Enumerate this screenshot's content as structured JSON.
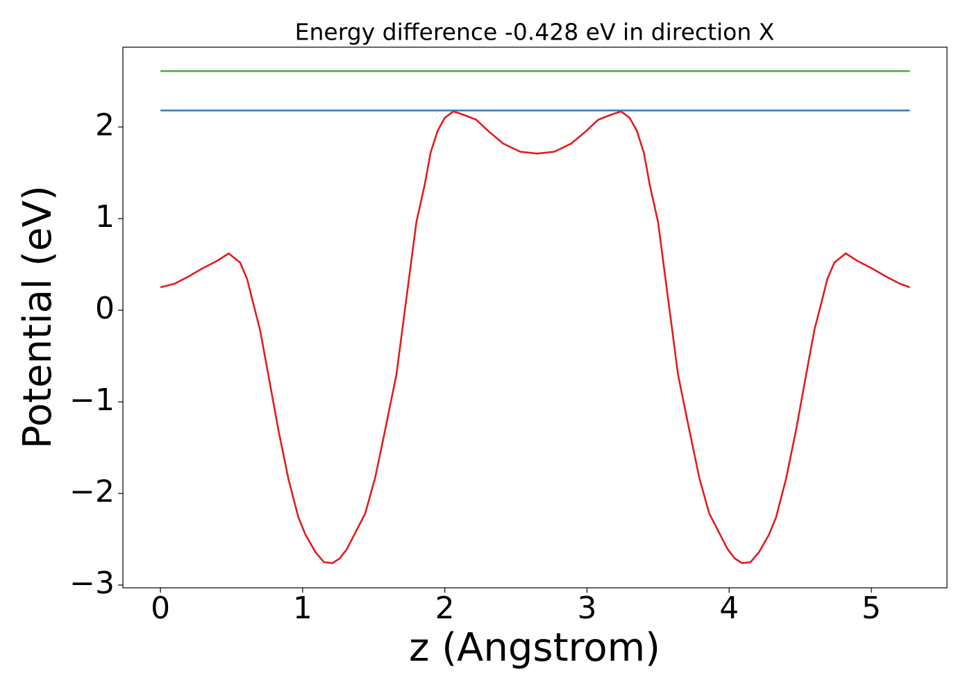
{
  "chart_data": {
    "type": "line",
    "title": "Energy difference -0.428 eV in direction X",
    "x_label": "z (Angstrom)",
    "y_label": "Potential (eV)",
    "xlim": [
      -0.264,
      5.532
    ],
    "ylim": [
      -3.03,
      2.871
    ],
    "xticks": [
      0,
      1,
      2,
      3,
      4,
      5
    ],
    "yticks": [
      {
        "value": -3,
        "label": "−3"
      },
      {
        "value": -2,
        "label": "−2"
      },
      {
        "value": -1,
        "label": "−1"
      },
      0,
      1,
      2
    ],
    "grid": false,
    "series": [
      {
        "color": "#e41a1c",
        "x": [
          0,
          0.1,
          0.2,
          0.3,
          0.4,
          0.48,
          0.56,
          0.61,
          0.65,
          0.7,
          0.75,
          0.83,
          0.9,
          0.97,
          1.02,
          1.09,
          1.15,
          1.21,
          1.26,
          1.31,
          1.37,
          1.44,
          1.51,
          1.58,
          1.66,
          1.73,
          1.8,
          1.86,
          1.9,
          1.95,
          2.0,
          2.06,
          2.12,
          2.22,
          2.31,
          2.41,
          2.53,
          2.65,
          2.77,
          2.89,
          2.99,
          3.08,
          3.18,
          3.24,
          3.3,
          3.35,
          3.4,
          3.44,
          3.5,
          3.57,
          3.64,
          3.72,
          3.79,
          3.86,
          3.93,
          3.99,
          4.04,
          4.09,
          4.15,
          4.21,
          4.28,
          4.33,
          4.4,
          4.47,
          4.55,
          4.6,
          4.65,
          4.69,
          4.74,
          4.82,
          4.9,
          5.0,
          5.1,
          5.2,
          5.27
        ],
        "values": [
          0.25,
          0.29,
          0.37,
          0.46,
          0.54,
          0.62,
          0.52,
          0.34,
          0.09,
          -0.21,
          -0.63,
          -1.31,
          -1.84,
          -2.26,
          -2.45,
          -2.64,
          -2.75,
          -2.76,
          -2.71,
          -2.61,
          -2.43,
          -2.22,
          -1.83,
          -1.31,
          -0.7,
          0.13,
          0.96,
          1.38,
          1.72,
          1.96,
          2.1,
          2.17,
          2.14,
          2.08,
          1.95,
          1.82,
          1.73,
          1.71,
          1.73,
          1.82,
          1.95,
          2.08,
          2.14,
          2.17,
          2.1,
          1.96,
          1.72,
          1.38,
          0.96,
          0.13,
          -0.7,
          -1.31,
          -1.83,
          -2.22,
          -2.43,
          -2.61,
          -2.71,
          -2.76,
          -2.75,
          -2.64,
          -2.45,
          -2.26,
          -1.84,
          -1.31,
          -0.63,
          -0.21,
          0.09,
          0.34,
          0.52,
          0.62,
          0.54,
          0.46,
          0.37,
          0.29,
          0.25
        ]
      },
      {
        "color": "#377eb8",
        "x": [
          0,
          5.27
        ],
        "values": [
          2.18,
          2.18
        ]
      },
      {
        "color": "#4daf4a",
        "x": [
          0,
          5.27
        ],
        "values": [
          2.61,
          2.61
        ]
      }
    ]
  }
}
